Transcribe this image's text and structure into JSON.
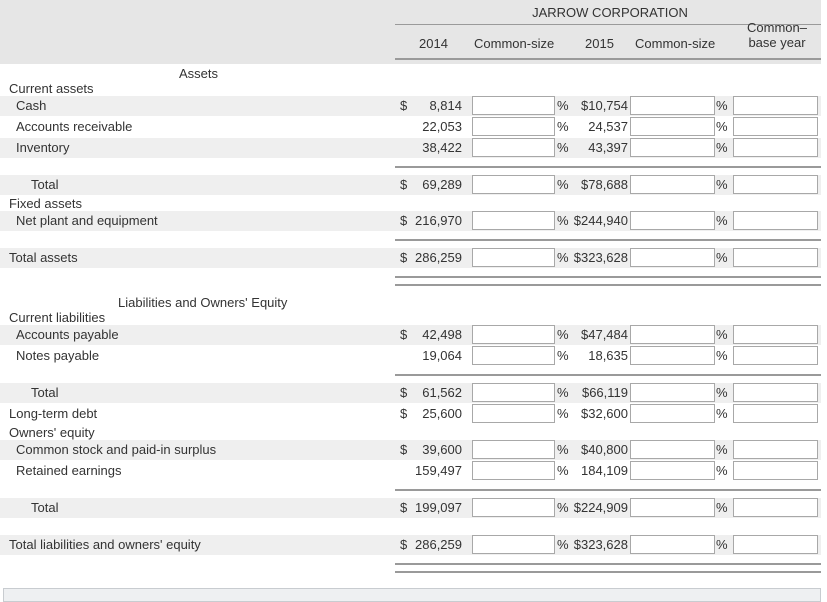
{
  "header": {
    "company": "JARROW CORPORATION",
    "col_2014": "2014",
    "col_cs1": "Common-size",
    "col_2015": "2015",
    "col_cs2": "Common-size",
    "col_cb": "Common–\nbase year"
  },
  "sections": {
    "assets": "Assets",
    "current_assets": "Current assets",
    "fixed_assets": "Fixed assets",
    "liab_equity": "Liabilities and Owners' Equity",
    "current_liabilities": "Current liabilities",
    "owners_equity": "Owners' equity"
  },
  "symbols": {
    "dollar": "$",
    "percent": "%"
  },
  "rows": [
    {
      "label": "Cash",
      "v2014": "8,814",
      "v2015": "$10,754"
    },
    {
      "label": "Accounts receivable",
      "v2014": "22,053",
      "v2015": "24,537"
    },
    {
      "label": "Inventory",
      "v2014": "38,422",
      "v2015": "43,397"
    },
    {
      "label": "Total",
      "v2014": "69,289",
      "v2015": "$78,688"
    },
    {
      "label": "Net plant and equipment",
      "v2014": "216,970",
      "v2015": "$244,940"
    },
    {
      "label": "Total assets",
      "v2014": "286,259",
      "v2015": "$323,628"
    },
    {
      "label": "Accounts payable",
      "v2014": "42,498",
      "v2015": "$47,484"
    },
    {
      "label": "Notes payable",
      "v2014": "19,064",
      "v2015": "18,635"
    },
    {
      "label": "Total",
      "v2014": "61,562",
      "v2015": "$66,119"
    },
    {
      "label": "Long-term debt",
      "v2014": "25,600",
      "v2015": "$32,600"
    },
    {
      "label": "Common stock and paid-in surplus",
      "v2014": "39,600",
      "v2015": "$40,800"
    },
    {
      "label": "Retained earnings",
      "v2014": "159,497",
      "v2015": "184,109"
    },
    {
      "label": "Total",
      "v2014": "199,097",
      "v2015": "$224,909"
    },
    {
      "label": "Total liabilities and owners' equity",
      "v2014": "286,259",
      "v2015": "$323,628"
    }
  ]
}
